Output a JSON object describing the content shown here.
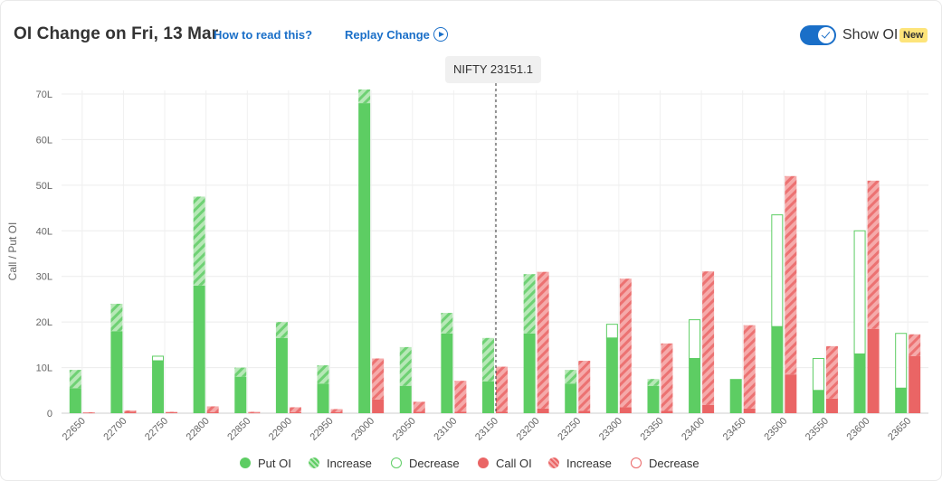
{
  "header": {
    "title": "OI Change on Fri, 13 Mar",
    "how_to_read": "How to read this?",
    "replay_label": "Replay Change",
    "show_oi_label": "Show OI",
    "new_badge": "New"
  },
  "spot": {
    "label": "NIFTY 23151.1",
    "strike_value": 23151.1
  },
  "colors": {
    "put": "#5dcd63",
    "put_light": "#b7e8b7",
    "call": "#ea6565",
    "call_light": "#f5aaaa",
    "accent": "#1a6fc8"
  },
  "chart_data": {
    "type": "bar",
    "ylabel": "Call / Put OI",
    "yticks": [
      "0",
      "10L",
      "20L",
      "30L",
      "40L",
      "50L",
      "60L",
      "70L"
    ],
    "ylim": [
      0,
      70
    ],
    "grid": true,
    "legend_position": "bottom",
    "categories": [
      "22650",
      "22700",
      "22750",
      "22800",
      "22850",
      "22900",
      "22950",
      "23000",
      "23050",
      "23100",
      "23150",
      "23200",
      "23250",
      "23300",
      "23350",
      "23400",
      "23450",
      "23500",
      "23550",
      "23600",
      "23650"
    ],
    "series": [
      {
        "name": "Put OI",
        "base": [
          5.5,
          18,
          11.5,
          28,
          8,
          16.5,
          6.5,
          68,
          6,
          17.5,
          7,
          17.5,
          6.5,
          16.5,
          6,
          12,
          7.5,
          19,
          5,
          13,
          5.5
        ],
        "increase": [
          4,
          6,
          0,
          19.5,
          2,
          3.5,
          4,
          3,
          8.5,
          4.5,
          9.5,
          13,
          3,
          0,
          1.5,
          0,
          0,
          0,
          0,
          0,
          0
        ],
        "decrease": [
          0,
          0,
          1,
          0,
          0,
          0,
          0,
          0,
          0,
          0,
          0,
          0,
          0,
          3,
          0,
          8.5,
          0,
          24.5,
          7,
          27,
          12
        ]
      },
      {
        "name": "Call OI",
        "base": [
          0.1,
          0.3,
          0.2,
          0.2,
          0.1,
          0.2,
          0.2,
          3,
          0.3,
          0.3,
          0.3,
          1,
          0.5,
          1.3,
          0.5,
          1.8,
          1,
          8.5,
          3.2,
          18.5,
          12.5
        ],
        "increase": [
          0.1,
          0.3,
          0.1,
          1.3,
          0.2,
          1.1,
          0.7,
          9,
          2.2,
          6.8,
          9.9,
          30,
          11,
          28.2,
          14.8,
          29.3,
          18.3,
          43.5,
          11.5,
          32.5,
          4.8
        ],
        "decrease": [
          0,
          0,
          0,
          0,
          0,
          0,
          0,
          0,
          0,
          0,
          0,
          0,
          0,
          0,
          0,
          0,
          0,
          0,
          0,
          0,
          0
        ]
      }
    ]
  },
  "legend": {
    "put_oi": "Put OI",
    "put_increase": "Increase",
    "put_decrease": "Decrease",
    "call_oi": "Call OI",
    "call_increase": "Increase",
    "call_decrease": "Decrease"
  }
}
